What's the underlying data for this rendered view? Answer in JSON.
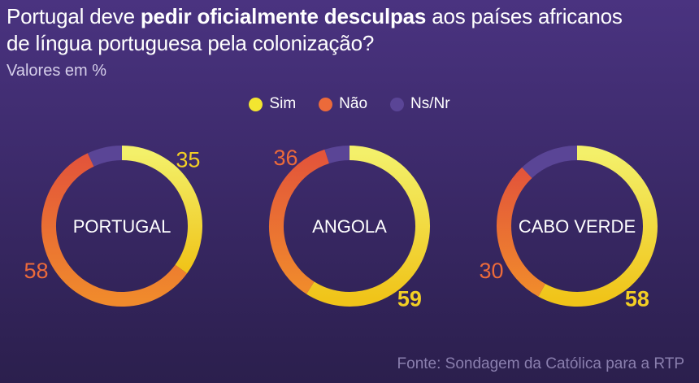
{
  "title": {
    "line1_pre": "Portugal deve ",
    "line1_bold": "pedir oficialmente desculpas",
    "line1_post": " aos países africanos",
    "line2": "de língua portuguesa pela colonização?"
  },
  "subtitle": "Valores em %",
  "source": "Fonte: Sondagem da Católica para a RTP",
  "colors": {
    "sim_start": "#f3f06a",
    "sim_end": "#f0c419",
    "nao_start": "#f08a2c",
    "nao_end": "#e3553a",
    "nsnr": "#5a4596",
    "label_sim": "#f3cf24",
    "label_nao": "#ec6a3a"
  },
  "chart_data": [
    {
      "type": "pie",
      "title": "PORTUGAL",
      "categories": [
        "Sim",
        "Não",
        "Ns/Nr"
      ],
      "values": [
        35,
        58,
        7
      ],
      "data_labels": [
        "35",
        "58",
        ""
      ]
    },
    {
      "type": "pie",
      "title": "ANGOLA",
      "categories": [
        "Sim",
        "Não",
        "Ns/Nr"
      ],
      "values": [
        59,
        36,
        5
      ],
      "data_labels": [
        "59",
        "36",
        ""
      ]
    },
    {
      "type": "pie",
      "title": "CABO VERDE",
      "categories": [
        "Sim",
        "Não",
        "Ns/Nr"
      ],
      "values": [
        58,
        30,
        12
      ],
      "data_labels": [
        "58",
        "30",
        ""
      ]
    }
  ],
  "legend": [
    {
      "label": "Sim",
      "color": "#f3e530"
    },
    {
      "label": "Não",
      "color": "#ec6a3a"
    },
    {
      "label": "Ns/Nr",
      "color": "#5a4596"
    }
  ]
}
